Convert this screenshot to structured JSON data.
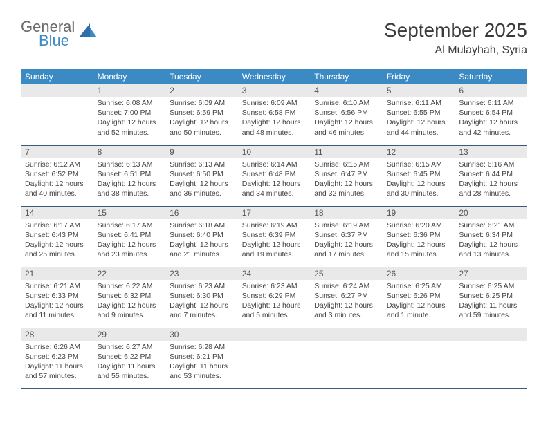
{
  "brand": {
    "word1": "General",
    "word2": "Blue"
  },
  "title": "September 2025",
  "location": "Al Mulayhah, Syria",
  "colors": {
    "header_bg": "#3b8ac4",
    "header_text": "#ffffff",
    "daynum_bg": "#e9e9e9",
    "row_border": "#3b5a7a",
    "body_text": "#444444",
    "title_text": "#3a3a3a",
    "logo_gray": "#6b6b6b",
    "logo_blue": "#3b8ac4"
  },
  "weekdays": [
    "Sunday",
    "Monday",
    "Tuesday",
    "Wednesday",
    "Thursday",
    "Friday",
    "Saturday"
  ],
  "weeks": [
    [
      null,
      {
        "num": "1",
        "sunrise": "Sunrise: 6:08 AM",
        "sunset": "Sunset: 7:00 PM",
        "daylight": "Daylight: 12 hours and 52 minutes."
      },
      {
        "num": "2",
        "sunrise": "Sunrise: 6:09 AM",
        "sunset": "Sunset: 6:59 PM",
        "daylight": "Daylight: 12 hours and 50 minutes."
      },
      {
        "num": "3",
        "sunrise": "Sunrise: 6:09 AM",
        "sunset": "Sunset: 6:58 PM",
        "daylight": "Daylight: 12 hours and 48 minutes."
      },
      {
        "num": "4",
        "sunrise": "Sunrise: 6:10 AM",
        "sunset": "Sunset: 6:56 PM",
        "daylight": "Daylight: 12 hours and 46 minutes."
      },
      {
        "num": "5",
        "sunrise": "Sunrise: 6:11 AM",
        "sunset": "Sunset: 6:55 PM",
        "daylight": "Daylight: 12 hours and 44 minutes."
      },
      {
        "num": "6",
        "sunrise": "Sunrise: 6:11 AM",
        "sunset": "Sunset: 6:54 PM",
        "daylight": "Daylight: 12 hours and 42 minutes."
      }
    ],
    [
      {
        "num": "7",
        "sunrise": "Sunrise: 6:12 AM",
        "sunset": "Sunset: 6:52 PM",
        "daylight": "Daylight: 12 hours and 40 minutes."
      },
      {
        "num": "8",
        "sunrise": "Sunrise: 6:13 AM",
        "sunset": "Sunset: 6:51 PM",
        "daylight": "Daylight: 12 hours and 38 minutes."
      },
      {
        "num": "9",
        "sunrise": "Sunrise: 6:13 AM",
        "sunset": "Sunset: 6:50 PM",
        "daylight": "Daylight: 12 hours and 36 minutes."
      },
      {
        "num": "10",
        "sunrise": "Sunrise: 6:14 AM",
        "sunset": "Sunset: 6:48 PM",
        "daylight": "Daylight: 12 hours and 34 minutes."
      },
      {
        "num": "11",
        "sunrise": "Sunrise: 6:15 AM",
        "sunset": "Sunset: 6:47 PM",
        "daylight": "Daylight: 12 hours and 32 minutes."
      },
      {
        "num": "12",
        "sunrise": "Sunrise: 6:15 AM",
        "sunset": "Sunset: 6:45 PM",
        "daylight": "Daylight: 12 hours and 30 minutes."
      },
      {
        "num": "13",
        "sunrise": "Sunrise: 6:16 AM",
        "sunset": "Sunset: 6:44 PM",
        "daylight": "Daylight: 12 hours and 28 minutes."
      }
    ],
    [
      {
        "num": "14",
        "sunrise": "Sunrise: 6:17 AM",
        "sunset": "Sunset: 6:43 PM",
        "daylight": "Daylight: 12 hours and 25 minutes."
      },
      {
        "num": "15",
        "sunrise": "Sunrise: 6:17 AM",
        "sunset": "Sunset: 6:41 PM",
        "daylight": "Daylight: 12 hours and 23 minutes."
      },
      {
        "num": "16",
        "sunrise": "Sunrise: 6:18 AM",
        "sunset": "Sunset: 6:40 PM",
        "daylight": "Daylight: 12 hours and 21 minutes."
      },
      {
        "num": "17",
        "sunrise": "Sunrise: 6:19 AM",
        "sunset": "Sunset: 6:39 PM",
        "daylight": "Daylight: 12 hours and 19 minutes."
      },
      {
        "num": "18",
        "sunrise": "Sunrise: 6:19 AM",
        "sunset": "Sunset: 6:37 PM",
        "daylight": "Daylight: 12 hours and 17 minutes."
      },
      {
        "num": "19",
        "sunrise": "Sunrise: 6:20 AM",
        "sunset": "Sunset: 6:36 PM",
        "daylight": "Daylight: 12 hours and 15 minutes."
      },
      {
        "num": "20",
        "sunrise": "Sunrise: 6:21 AM",
        "sunset": "Sunset: 6:34 PM",
        "daylight": "Daylight: 12 hours and 13 minutes."
      }
    ],
    [
      {
        "num": "21",
        "sunrise": "Sunrise: 6:21 AM",
        "sunset": "Sunset: 6:33 PM",
        "daylight": "Daylight: 12 hours and 11 minutes."
      },
      {
        "num": "22",
        "sunrise": "Sunrise: 6:22 AM",
        "sunset": "Sunset: 6:32 PM",
        "daylight": "Daylight: 12 hours and 9 minutes."
      },
      {
        "num": "23",
        "sunrise": "Sunrise: 6:23 AM",
        "sunset": "Sunset: 6:30 PM",
        "daylight": "Daylight: 12 hours and 7 minutes."
      },
      {
        "num": "24",
        "sunrise": "Sunrise: 6:23 AM",
        "sunset": "Sunset: 6:29 PM",
        "daylight": "Daylight: 12 hours and 5 minutes."
      },
      {
        "num": "25",
        "sunrise": "Sunrise: 6:24 AM",
        "sunset": "Sunset: 6:27 PM",
        "daylight": "Daylight: 12 hours and 3 minutes."
      },
      {
        "num": "26",
        "sunrise": "Sunrise: 6:25 AM",
        "sunset": "Sunset: 6:26 PM",
        "daylight": "Daylight: 12 hours and 1 minute."
      },
      {
        "num": "27",
        "sunrise": "Sunrise: 6:25 AM",
        "sunset": "Sunset: 6:25 PM",
        "daylight": "Daylight: 11 hours and 59 minutes."
      }
    ],
    [
      {
        "num": "28",
        "sunrise": "Sunrise: 6:26 AM",
        "sunset": "Sunset: 6:23 PM",
        "daylight": "Daylight: 11 hours and 57 minutes."
      },
      {
        "num": "29",
        "sunrise": "Sunrise: 6:27 AM",
        "sunset": "Sunset: 6:22 PM",
        "daylight": "Daylight: 11 hours and 55 minutes."
      },
      {
        "num": "30",
        "sunrise": "Sunrise: 6:28 AM",
        "sunset": "Sunset: 6:21 PM",
        "daylight": "Daylight: 11 hours and 53 minutes."
      },
      null,
      null,
      null,
      null
    ]
  ]
}
